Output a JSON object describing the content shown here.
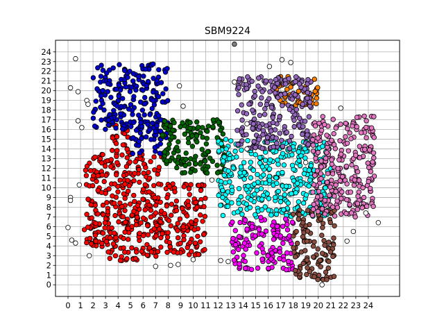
{
  "chart_data": {
    "type": "scatter",
    "title": "SBM9224",
    "xlabel": "",
    "ylabel": "",
    "xlim": [
      -1,
      26.5
    ],
    "ylim": [
      -1.2,
      25.2
    ],
    "xticks": [
      0,
      1,
      2,
      3,
      4,
      5,
      6,
      7,
      8,
      9,
      10,
      11,
      12,
      13,
      14,
      15,
      16,
      17,
      18,
      19,
      20,
      21,
      22,
      23,
      24
    ],
    "yticks": [
      0,
      1,
      2,
      3,
      4,
      5,
      6,
      7,
      8,
      9,
      10,
      11,
      12,
      13,
      14,
      15,
      16,
      17,
      18,
      19,
      20,
      21,
      22,
      23,
      24
    ],
    "grid": true,
    "legend": "none",
    "colors": {
      "red": "#ff0000",
      "blue": "#0000cc",
      "green": "#006400",
      "cyan": "#00ffff",
      "magenta": "#ff00ff",
      "brown": "#8b4d3f",
      "orange": "#ff8000",
      "purple": "#9467bd",
      "pink": "#e377c2",
      "white": "#ffffff",
      "gray": "#808080"
    },
    "clusters": [
      {
        "color": "red",
        "x": [
          1.3,
          7.5
        ],
        "y": [
          3.5,
          13.5
        ]
      },
      {
        "color": "red",
        "x": [
          7.5,
          11.0
        ],
        "y": [
          3.0,
          10.5
        ]
      },
      {
        "color": "red",
        "x": [
          2.5,
          7.2
        ],
        "y": [
          2.5,
          3.5
        ]
      },
      {
        "color": "red",
        "x": [
          3.5,
          5.0
        ],
        "y": [
          13.5,
          16.5
        ]
      },
      {
        "color": "blue",
        "x": [
          2.0,
          8.0
        ],
        "y": [
          16.0,
          22.8
        ]
      },
      {
        "color": "blue",
        "x": [
          5.0,
          8.0
        ],
        "y": [
          13.5,
          16.0
        ]
      },
      {
        "color": "green",
        "x": [
          7.5,
          12.5
        ],
        "y": [
          11.5,
          17.0
        ]
      },
      {
        "color": "cyan",
        "x": [
          12.0,
          21.0
        ],
        "y": [
          7.0,
          15.0
        ]
      },
      {
        "color": "magenta",
        "x": [
          13.0,
          18.0
        ],
        "y": [
          1.5,
          7.0
        ]
      },
      {
        "color": "brown",
        "x": [
          18.0,
          21.3
        ],
        "y": [
          0.5,
          7.8
        ]
      },
      {
        "color": "orange",
        "x": [
          16.5,
          20.0
        ],
        "y": [
          18.5,
          21.5
        ]
      },
      {
        "color": "purple",
        "x": [
          13.5,
          19.5
        ],
        "y": [
          14.0,
          21.5
        ]
      },
      {
        "color": "pink",
        "x": [
          19.5,
          24.5
        ],
        "y": [
          7.0,
          17.5
        ]
      }
    ],
    "outliers": [
      {
        "x": 0.6,
        "y": 23.3,
        "color": "white"
      },
      {
        "x": 0.2,
        "y": 20.3,
        "color": "white"
      },
      {
        "x": 0.8,
        "y": 19.9,
        "color": "white"
      },
      {
        "x": 1.5,
        "y": 19.0,
        "color": "white"
      },
      {
        "x": 1.6,
        "y": 18.6,
        "color": "white"
      },
      {
        "x": 0.8,
        "y": 16.9,
        "color": "white"
      },
      {
        "x": 1.1,
        "y": 16.2,
        "color": "white"
      },
      {
        "x": 0.2,
        "y": 9.0,
        "color": "white"
      },
      {
        "x": 0.2,
        "y": 8.7,
        "color": "white"
      },
      {
        "x": 0.9,
        "y": 10.3,
        "color": "white"
      },
      {
        "x": 0.0,
        "y": 5.9,
        "color": "white"
      },
      {
        "x": 0.3,
        "y": 4.6,
        "color": "white"
      },
      {
        "x": 0.6,
        "y": 4.3,
        "color": "white"
      },
      {
        "x": 1.7,
        "y": 3.0,
        "color": "white"
      },
      {
        "x": 7.0,
        "y": 1.9,
        "color": "white"
      },
      {
        "x": 8.2,
        "y": 2.0,
        "color": "white"
      },
      {
        "x": 8.8,
        "y": 2.1,
        "color": "white"
      },
      {
        "x": 10.0,
        "y": 2.6,
        "color": "white"
      },
      {
        "x": 12.2,
        "y": 2.5,
        "color": "white"
      },
      {
        "x": 12.8,
        "y": 2.4,
        "color": "white"
      },
      {
        "x": 8.9,
        "y": 20.5,
        "color": "white"
      },
      {
        "x": 9.2,
        "y": 18.4,
        "color": "white"
      },
      {
        "x": 10.6,
        "y": 8.4,
        "color": "white"
      },
      {
        "x": 11.5,
        "y": 10.8,
        "color": "white"
      },
      {
        "x": 13.3,
        "y": 20.9,
        "color": "white"
      },
      {
        "x": 14.3,
        "y": 16.6,
        "color": "white"
      },
      {
        "x": 14.3,
        "y": 14.0,
        "color": "white"
      },
      {
        "x": 16.1,
        "y": 22.5,
        "color": "white"
      },
      {
        "x": 17.1,
        "y": 23.2,
        "color": "white"
      },
      {
        "x": 17.8,
        "y": 22.9,
        "color": "white"
      },
      {
        "x": 19.0,
        "y": 12.6,
        "color": "white"
      },
      {
        "x": 20.3,
        "y": 0.0,
        "color": "white"
      },
      {
        "x": 21.8,
        "y": 18.2,
        "color": "white"
      },
      {
        "x": 22.3,
        "y": 4.5,
        "color": "white"
      },
      {
        "x": 22.8,
        "y": 5.5,
        "color": "white"
      },
      {
        "x": 23.8,
        "y": 7.4,
        "color": "white"
      },
      {
        "x": 24.8,
        "y": 6.4,
        "color": "white"
      },
      {
        "x": 13.3,
        "y": 24.8,
        "color": "gray"
      }
    ]
  }
}
